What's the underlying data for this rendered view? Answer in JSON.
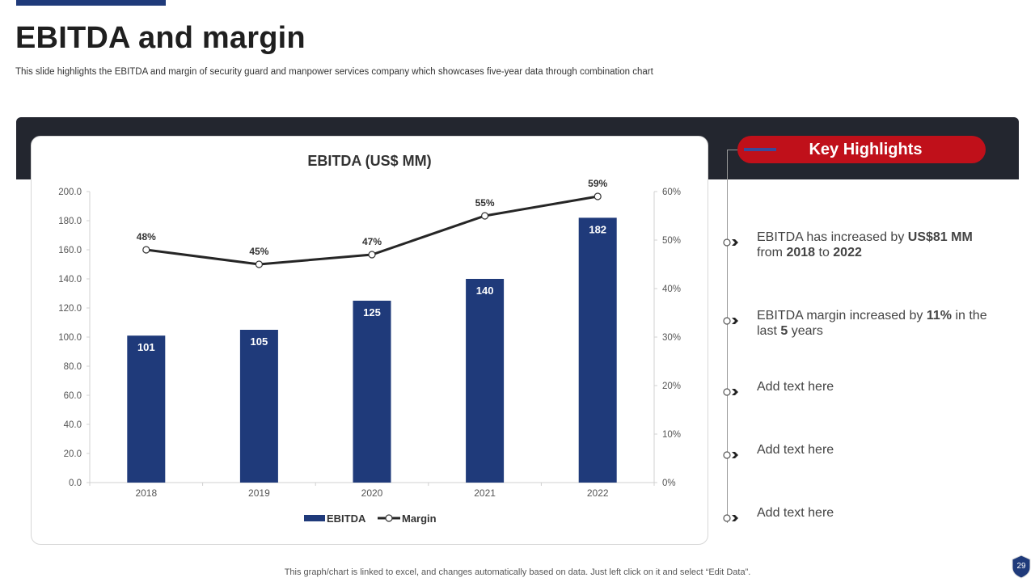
{
  "slide": {
    "title": "EBITDA and margin",
    "subtitle": "This slide highlights the EBITDA and margin of security guard and manpower services company which showcases five-year data through combination chart",
    "footnote": "This graph/chart is linked to excel, and changes automatically based on data. Just left click on it and select “Edit Data”.",
    "page_number": "29"
  },
  "highlights": {
    "title": "Key Highlights",
    "items": [
      {
        "pre": "EBITDA has increased by ",
        "b1": "US$81 MM",
        "mid": " from ",
        "b2": "2018",
        "mid2": " to ",
        "b3": "2022",
        "post": ""
      },
      {
        "pre": "EBITDA margin increased by ",
        "b1": "11%",
        "mid": " in the last ",
        "b2": "5",
        "mid2": " years",
        "b3": "",
        "post": ""
      },
      {
        "pre": "Add text here",
        "b1": "",
        "mid": "",
        "b2": "",
        "mid2": "",
        "b3": "",
        "post": ""
      },
      {
        "pre": "Add text here",
        "b1": "",
        "mid": "",
        "b2": "",
        "mid2": "",
        "b3": "",
        "post": ""
      },
      {
        "pre": "Add text here",
        "b1": "",
        "mid": "",
        "b2": "",
        "mid2": "",
        "b3": "",
        "post": ""
      }
    ]
  },
  "colors": {
    "bar": "#1f3a7a",
    "line": "#262626",
    "accent_red": "#c0101a",
    "dark_band": "#23262f"
  },
  "chart_data": {
    "type": "bar",
    "title": "EBITDA (US$ MM)",
    "categories": [
      "2018",
      "2019",
      "2020",
      "2021",
      "2022"
    ],
    "series": [
      {
        "name": "EBITDA",
        "type": "bar",
        "axis": "left",
        "values": [
          101,
          105,
          125,
          140,
          182
        ],
        "labels": [
          "101",
          "105",
          "125",
          "140",
          "182"
        ]
      },
      {
        "name": "Margin",
        "type": "line",
        "axis": "right",
        "values": [
          48,
          45,
          47,
          55,
          59
        ],
        "labels": [
          "48%",
          "45%",
          "47%",
          "55%",
          "59%"
        ]
      }
    ],
    "ylim": [
      0,
      200
    ],
    "y2lim": [
      0,
      60
    ],
    "yticks": [
      "0.0",
      "20.0",
      "40.0",
      "60.0",
      "80.0",
      "100.0",
      "120.0",
      "140.0",
      "160.0",
      "180.0",
      "200.0"
    ],
    "y2ticks": [
      "0%",
      "10%",
      "20%",
      "30%",
      "40%",
      "50%",
      "60%"
    ],
    "legend": {
      "position": "bottom",
      "entries": [
        "EBITDA",
        "Margin"
      ]
    },
    "grid": false,
    "xlabel": "",
    "ylabel": ""
  }
}
